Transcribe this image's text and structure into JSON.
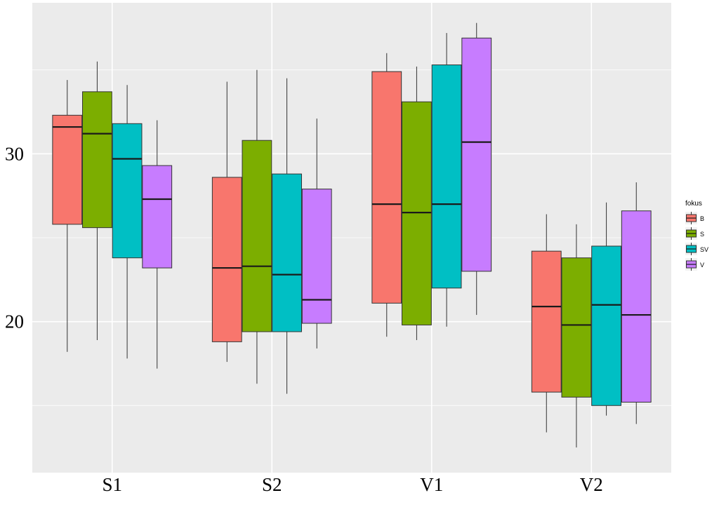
{
  "chart_data": {
    "type": "box",
    "categories": [
      "S1",
      "S2",
      "V1",
      "V2"
    ],
    "y_ticks": [
      20,
      30
    ],
    "ylim": [
      11,
      39
    ],
    "grid": true,
    "legend_placement": "right",
    "legend_title": "fokus",
    "series": [
      {
        "name": "B",
        "color": "#F8766D",
        "boxes": [
          {
            "min": 18.2,
            "q1": 25.8,
            "median": 31.6,
            "q3": 32.3,
            "max": 34.4
          },
          {
            "min": 17.6,
            "q1": 18.8,
            "median": 23.2,
            "q3": 28.6,
            "max": 34.3
          },
          {
            "min": 19.1,
            "q1": 21.1,
            "median": 27.0,
            "q3": 34.9,
            "max": 36.0
          },
          {
            "min": 13.4,
            "q1": 15.8,
            "median": 20.9,
            "q3": 24.2,
            "max": 26.4
          }
        ]
      },
      {
        "name": "S",
        "color": "#7CAE00",
        "boxes": [
          {
            "min": 18.9,
            "q1": 25.6,
            "median": 31.2,
            "q3": 33.7,
            "max": 35.5
          },
          {
            "min": 16.3,
            "q1": 19.4,
            "median": 23.3,
            "q3": 30.8,
            "max": 35.0
          },
          {
            "min": 18.9,
            "q1": 19.8,
            "median": 26.5,
            "q3": 33.1,
            "max": 35.2
          },
          {
            "min": 12.5,
            "q1": 15.5,
            "median": 19.8,
            "q3": 23.8,
            "max": 25.8
          }
        ]
      },
      {
        "name": "SV",
        "color": "#00BFC4",
        "boxes": [
          {
            "min": 17.8,
            "q1": 23.8,
            "median": 29.7,
            "q3": 31.8,
            "max": 34.1
          },
          {
            "min": 15.7,
            "q1": 19.4,
            "median": 22.8,
            "q3": 28.8,
            "max": 34.5
          },
          {
            "min": 19.7,
            "q1": 22.0,
            "median": 27.0,
            "q3": 35.3,
            "max": 37.2
          },
          {
            "min": 14.4,
            "q1": 15.0,
            "median": 21.0,
            "q3": 24.5,
            "max": 27.1
          }
        ]
      },
      {
        "name": "V",
        "color": "#C77CFF",
        "boxes": [
          {
            "min": 17.2,
            "q1": 23.2,
            "median": 27.3,
            "q3": 29.3,
            "max": 32.0
          },
          {
            "min": 18.4,
            "q1": 19.9,
            "median": 21.3,
            "q3": 27.9,
            "max": 32.1
          },
          {
            "min": 20.4,
            "q1": 23.0,
            "median": 30.7,
            "q3": 36.9,
            "max": 37.8
          },
          {
            "min": 13.9,
            "q1": 15.2,
            "median": 20.4,
            "q3": 26.6,
            "max": 28.3
          }
        ]
      }
    ]
  }
}
